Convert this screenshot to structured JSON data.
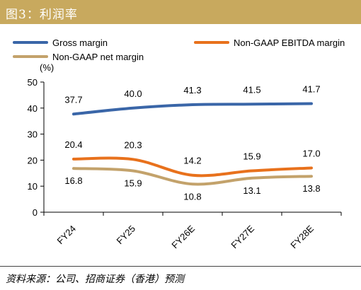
{
  "header": {
    "title": "图3：利润率"
  },
  "footer": {
    "source": "资料来源：公司、招商证券（香港）预测"
  },
  "colors": {
    "header_bg": "#c8a95e",
    "gross": "#3a66a8",
    "ebitda": "#e8711c",
    "net": "#c3a26b"
  },
  "chart_data": {
    "type": "line",
    "categories": [
      "FY24",
      "FY25",
      "FY26E",
      "FY27E",
      "FY28E"
    ],
    "ylabel": "(%)",
    "ylim": [
      0,
      50
    ],
    "yticks": [
      "0",
      "10",
      "20",
      "30",
      "40",
      "50"
    ],
    "grid": false,
    "legend_position": "top",
    "series": [
      {
        "name": "Gross margin",
        "color": "#3a66a8",
        "values": [
          37.7,
          40.0,
          41.3,
          41.5,
          41.7
        ],
        "labels": [
          "37.7",
          "40.0",
          "41.3",
          "41.5",
          "41.7"
        ]
      },
      {
        "name": "Non-GAAP EBITDA margin",
        "color": "#e8711c",
        "values": [
          20.4,
          20.3,
          14.2,
          15.9,
          17.0
        ],
        "labels": [
          "20.4",
          "20.3",
          "14.2",
          "15.9",
          "17.0"
        ]
      },
      {
        "name": "Non-GAAP net margin",
        "color": "#c3a26b",
        "values": [
          16.8,
          15.9,
          10.8,
          13.1,
          13.8
        ],
        "labels": [
          "16.8",
          "15.9",
          "10.8",
          "13.1",
          "13.8"
        ]
      }
    ]
  }
}
